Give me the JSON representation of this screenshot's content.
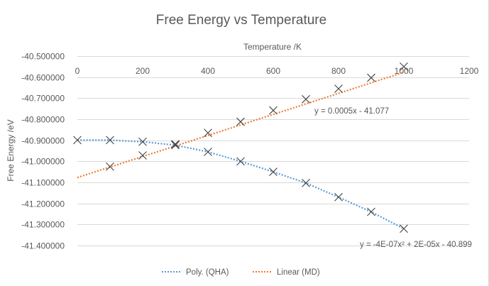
{
  "chart_data": {
    "type": "scatter",
    "title": "Free Energy vs Temperature",
    "xlabel": "Temperature  /K",
    "ylabel": "Free Energy /eV",
    "xlim": [
      0,
      1200
    ],
    "ylim": [
      -41.4,
      -40.5
    ],
    "x_ticks": [
      "0",
      "200",
      "400",
      "600",
      "800",
      "1000",
      "1200"
    ],
    "x_tick_values": [
      0,
      200,
      400,
      600,
      800,
      1000,
      1200
    ],
    "y_ticks": [
      "-40.500000",
      "-40.600000",
      "-40.700000",
      "-40.800000",
      "-40.900000",
      "-41.000000",
      "-41.100000",
      "-41.200000",
      "-41.300000",
      "-41.400000"
    ],
    "y_tick_values": [
      -40.5,
      -40.6,
      -40.7,
      -40.8,
      -40.9,
      -41.0,
      -41.1,
      -41.2,
      -41.3,
      -41.4
    ],
    "x_axis_position": "top",
    "grid": true,
    "legend_position": "bottom",
    "series": [
      {
        "name": "QHA",
        "marker": "x",
        "x": [
          0,
          100,
          200,
          300,
          400,
          500,
          600,
          700,
          800,
          900,
          1000
        ],
        "y": [
          -40.899,
          -40.899,
          -40.907,
          -40.923,
          -40.955,
          -41.0,
          -41.05,
          -41.103,
          -41.17,
          -41.24,
          -41.32
        ]
      },
      {
        "name": "MD",
        "marker": "x",
        "x": [
          100,
          200,
          300,
          400,
          500,
          600,
          700,
          800,
          900,
          1000
        ],
        "y": [
          -41.025,
          -40.972,
          -40.918,
          -40.865,
          -40.812,
          -40.758,
          -40.705,
          -40.655,
          -40.603,
          -40.55
        ]
      }
    ],
    "trendlines": [
      {
        "name": "Poly. (QHA)",
        "type": "polynomial",
        "coefficients": [
          -4e-07,
          2e-05,
          -40.899
        ],
        "equation": "y = -4E-07x² + 2E-05x - 40.899",
        "color": "#5b9bd5",
        "range": [
          0,
          1000
        ]
      },
      {
        "name": "Linear (MD)",
        "type": "linear",
        "coefficients": [
          0.0005,
          -41.077
        ],
        "equation": "y = 0.0005x - 41.077",
        "color": "#ed7d31",
        "range": [
          0,
          1000
        ]
      }
    ],
    "legend": [
      "Poly. (QHA)",
      "Linear (MD)"
    ],
    "marker_color": "#404040"
  }
}
